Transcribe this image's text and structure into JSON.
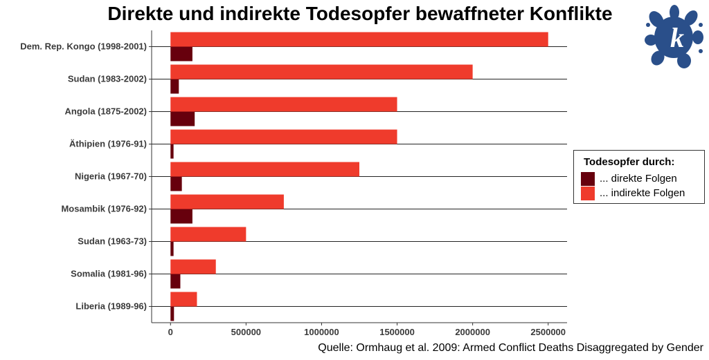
{
  "chart_data": {
    "type": "bar",
    "orientation": "horizontal",
    "title": "Direkte und indirekte Todesopfer bewaffneter Konflikte",
    "categories": [
      "Dem. Rep. Kongo (1998-2001)",
      "Sudan (1983-2002)",
      "Angola (1875-2002)",
      "Äthipien (1976-91)",
      "Nigeria (1967-70)",
      "Mosambik (1976-92)",
      "Sudan (1963-73)",
      "Somalia (1981-96)",
      "Liberia (1989-96)"
    ],
    "series": [
      {
        "name": "... direkte Folgen",
        "color": "#67000d",
        "values": [
          145000,
          55000,
          160000,
          20000,
          75000,
          145000,
          20000,
          65000,
          23000
        ]
      },
      {
        "name": "... indirekte Folgen",
        "color": "#ef3b2c",
        "values": [
          2500000,
          2000000,
          1500000,
          1500000,
          1250000,
          750000,
          500000,
          300000,
          175000
        ]
      }
    ],
    "xticks": [
      0,
      500000,
      1000000,
      1500000,
      2000000,
      2500000
    ],
    "xtick_labels": [
      "0",
      "500000",
      "1000000",
      "1500000",
      "2000000",
      "2500000"
    ],
    "xlim": [
      -125000,
      2625000
    ],
    "legend": {
      "title": "Todesopfer durch:",
      "position": "right"
    },
    "grid": "horizontal lines at categories",
    "source": "Quelle: Ormhaug et al. 2009: Armed Conflict Deaths Disaggregated by Gender"
  },
  "logo": {
    "letter": "k",
    "color": "#2a4f8a"
  }
}
